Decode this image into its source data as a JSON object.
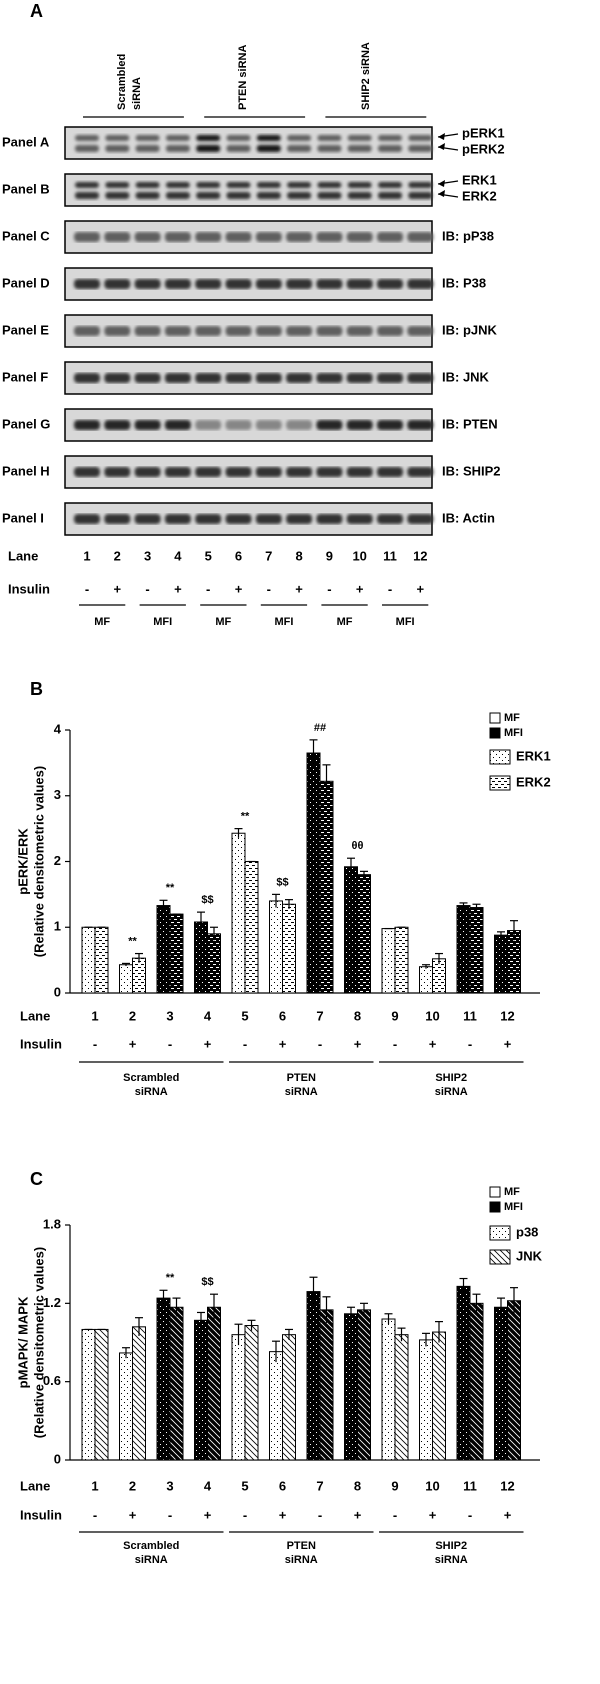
{
  "figure_a": {
    "label": "A",
    "groups": [
      [
        "Scrambled",
        "siRNA"
      ],
      [
        "PTEN siRNA"
      ],
      [
        "SHIP2 siRNA"
      ]
    ],
    "panels": [
      {
        "name": "Panel A",
        "labels": [
          "pERK1",
          "pERK2"
        ],
        "arrows": true
      },
      {
        "name": "Panel B",
        "labels": [
          "ERK1",
          "ERK2"
        ],
        "arrows": true
      },
      {
        "name": "Panel C",
        "labels": [
          "IB: pP38"
        ]
      },
      {
        "name": "Panel D",
        "labels": [
          "IB: P38"
        ]
      },
      {
        "name": "Panel E",
        "labels": [
          "IB: pJNK"
        ]
      },
      {
        "name": "Panel F",
        "labels": [
          "IB: JNK"
        ]
      },
      {
        "name": "Panel G",
        "labels": [
          "IB: PTEN"
        ]
      },
      {
        "name": "Panel H",
        "labels": [
          "IB: SHIP2"
        ]
      },
      {
        "name": "Panel I",
        "labels": [
          "IB: Actin"
        ]
      }
    ],
    "lane_label": "Lane",
    "lanes": [
      "1",
      "2",
      "3",
      "4",
      "5",
      "6",
      "7",
      "8",
      "9",
      "10",
      "11",
      "12"
    ],
    "insulin_label": "Insulin",
    "insulin": [
      "-",
      "+",
      "-",
      "+",
      "-",
      "+",
      "-",
      "+",
      "-",
      "+",
      "-",
      "+"
    ],
    "treatments": [
      "MF",
      "MFI",
      "MF",
      "MFI",
      "MF",
      "MFI"
    ]
  },
  "chart_data": [
    {
      "type": "bar",
      "label": "B",
      "ylabel": [
        "pERK/ERK",
        "(Relative densitometric values)"
      ],
      "categories": [
        "1",
        "2",
        "3",
        "4",
        "5",
        "6",
        "7",
        "8",
        "9",
        "10",
        "11",
        "12"
      ],
      "row_label": "Lane",
      "insulin_label": "Insulin",
      "insulin": [
        "-",
        "+",
        "-",
        "+",
        "-",
        "+",
        "-",
        "+",
        "-",
        "+",
        "-",
        "+"
      ],
      "groups": [
        [
          "Scrambled",
          "siRNA"
        ],
        [
          "PTEN",
          "siRNA"
        ],
        [
          "SHIP2",
          "siRNA"
        ]
      ],
      "bar_colors": [
        "#ffffff",
        "#ffffff",
        "#000000",
        "#000000",
        "#ffffff",
        "#ffffff",
        "#000000",
        "#000000",
        "#ffffff",
        "#ffffff",
        "#000000",
        "#000000"
      ],
      "color_legend": [
        {
          "name": "MF",
          "color": "#ffffff"
        },
        {
          "name": "MFI",
          "color": "#000000"
        }
      ],
      "series": [
        {
          "name": "ERK1",
          "pattern": "dots",
          "values": [
            1.0,
            0.43,
            1.33,
            1.08,
            2.43,
            1.4,
            3.65,
            1.92,
            0.98,
            0.4,
            1.33,
            0.88
          ],
          "errors": [
            0,
            0.02,
            0.08,
            0.15,
            0.07,
            0.1,
            0.2,
            0.13,
            0,
            0.03,
            0.04,
            0.05
          ]
        },
        {
          "name": "ERK2",
          "pattern": "dashes",
          "values": [
            1.0,
            0.53,
            1.2,
            0.9,
            2.0,
            1.35,
            3.22,
            1.8,
            1.0,
            0.52,
            1.3,
            0.95
          ],
          "errors": [
            0,
            0.07,
            0,
            0.1,
            0,
            0.07,
            0.25,
            0.05,
            0,
            0.08,
            0.05,
            0.15
          ]
        }
      ],
      "annotations": [
        null,
        "**",
        "**",
        "$$",
        "**",
        "$$",
        "##",
        "θθ",
        null,
        null,
        null,
        null
      ],
      "ylim": [
        0,
        4
      ],
      "yticks": [
        0,
        1,
        2,
        3,
        4
      ]
    },
    {
      "type": "bar",
      "label": "C",
      "ylabel": [
        "pMAPK/ MAPK",
        "(Relative densitometric values)"
      ],
      "categories": [
        "1",
        "2",
        "3",
        "4",
        "5",
        "6",
        "7",
        "8",
        "9",
        "10",
        "11",
        "12"
      ],
      "row_label": "Lane",
      "insulin_label": "Insulin",
      "insulin": [
        "-",
        "+",
        "-",
        "+",
        "-",
        "+",
        "-",
        "+",
        "-",
        "+",
        "-",
        "+"
      ],
      "groups": [
        [
          "Scrambled",
          "siRNA"
        ],
        [
          "PTEN",
          "siRNA"
        ],
        [
          "SHIP2",
          "siRNA"
        ]
      ],
      "bar_colors": [
        "#ffffff",
        "#ffffff",
        "#000000",
        "#000000",
        "#ffffff",
        "#ffffff",
        "#000000",
        "#000000",
        "#ffffff",
        "#ffffff",
        "#000000",
        "#000000"
      ],
      "color_legend": [
        {
          "name": "MF",
          "color": "#ffffff"
        },
        {
          "name": "MFI",
          "color": "#000000"
        }
      ],
      "series": [
        {
          "name": "p38",
          "pattern": "dots",
          "values": [
            1.0,
            0.82,
            1.24,
            1.07,
            0.96,
            0.83,
            1.29,
            1.12,
            1.08,
            0.92,
            1.33,
            1.17
          ],
          "errors": [
            0,
            0.04,
            0.06,
            0.06,
            0.08,
            0.08,
            0.11,
            0.05,
            0.04,
            0.05,
            0.06,
            0.07
          ]
        },
        {
          "name": "JNK",
          "pattern": "hatch",
          "values": [
            1.0,
            1.02,
            1.17,
            1.17,
            1.03,
            0.96,
            1.15,
            1.15,
            0.96,
            0.98,
            1.2,
            1.22
          ],
          "errors": [
            0,
            0.07,
            0.07,
            0.1,
            0.04,
            0.04,
            0.1,
            0.05,
            0.05,
            0.08,
            0.07,
            0.1
          ]
        }
      ],
      "annotations": [
        null,
        null,
        "**",
        "$$",
        null,
        null,
        null,
        null,
        null,
        null,
        null,
        null
      ],
      "ylim": [
        0,
        1.8
      ],
      "yticks": [
        0,
        0.6,
        1.2,
        1.8
      ]
    }
  ]
}
